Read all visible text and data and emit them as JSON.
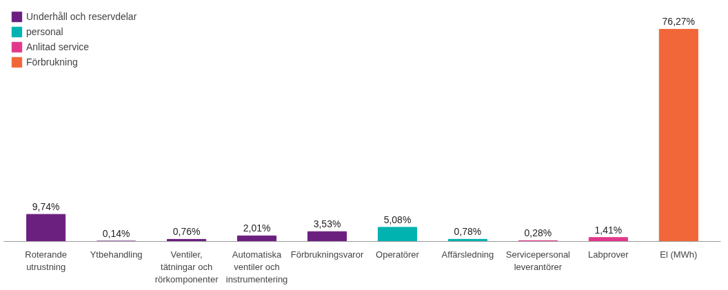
{
  "chart_data": {
    "type": "bar",
    "categories": [
      "Roterande\nutrustning",
      "Ytbehandling",
      "Ventiler,\ntätningar och\nrörkomponenter",
      "Automatiska\nventiler och\ninstrumentering",
      "Förbrukningsvaror",
      "Operatörer",
      "Affärsledning",
      "Servicepersonal\nleverantörer",
      "Labprover",
      "El (MWh)"
    ],
    "series": [
      {
        "name": "Underhåll och reservdelar",
        "color": "#6b1f7f",
        "values": [
          9.74,
          0.14,
          0.76,
          2.01,
          3.53,
          null,
          null,
          null,
          null,
          null
        ],
        "value_labels": [
          "9,74%",
          "0,14%",
          "0,76%",
          "2,01%",
          "3,53%",
          null,
          null,
          null,
          null,
          null
        ]
      },
      {
        "name": "personal",
        "color": "#00b2b0",
        "values": [
          null,
          null,
          null,
          null,
          null,
          5.08,
          0.78,
          null,
          null,
          null
        ],
        "value_labels": [
          null,
          null,
          null,
          null,
          null,
          "5,08%",
          "0,78%",
          null,
          null,
          null
        ]
      },
      {
        "name": "Anlitad service",
        "color": "#e2388c",
        "values": [
          null,
          null,
          null,
          null,
          null,
          null,
          null,
          0.28,
          1.41,
          null
        ],
        "value_labels": [
          null,
          null,
          null,
          null,
          null,
          null,
          null,
          "0,28%",
          "1,41%",
          null
        ]
      },
      {
        "name": "Förbrukning",
        "color": "#f26739",
        "values": [
          null,
          null,
          null,
          null,
          null,
          null,
          null,
          null,
          null,
          76.27
        ],
        "value_labels": [
          null,
          null,
          null,
          null,
          null,
          null,
          null,
          null,
          null,
          "76,27%"
        ]
      }
    ],
    "legend": "top left",
    "tick_labels": "x"
  }
}
